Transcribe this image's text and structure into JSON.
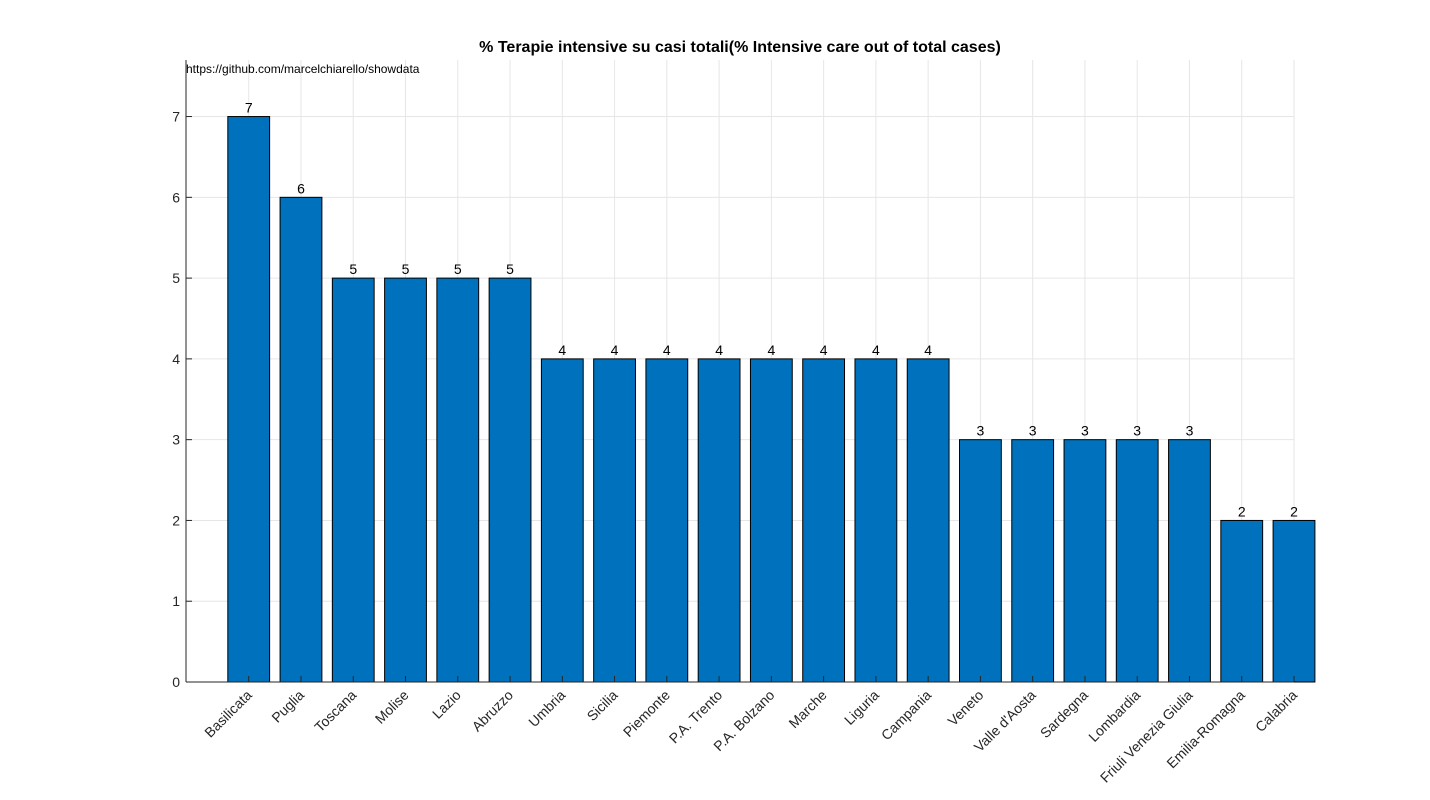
{
  "chart_data": {
    "type": "bar",
    "title": "% Terapie intensive su casi totali(% Intensive care out of total cases)",
    "annotation": "https://github.com/marcelchiarello/showdata",
    "xlabel": "",
    "ylabel": "",
    "categories": [
      "Basilicata",
      "Puglia",
      "Toscana",
      "Molise",
      "Lazio",
      "Abruzzo",
      "Umbria",
      "Sicilia",
      "Piemonte",
      "P.A. Trento",
      "P.A. Bolzano",
      "Marche",
      "Liguria",
      "Campania",
      "Veneto",
      "Valle d'Aosta",
      "Sardegna",
      "Lombardia",
      "Friuli Venezia Giulia",
      "Emilia-Romagna",
      "Calabria"
    ],
    "values": [
      7,
      6,
      5,
      5,
      5,
      5,
      4,
      4,
      4,
      4,
      4,
      4,
      4,
      4,
      3,
      3,
      3,
      3,
      3,
      2,
      2
    ],
    "ylim": [
      0,
      7.7
    ],
    "yticks": [
      0,
      1,
      2,
      3,
      4,
      5,
      6,
      7
    ],
    "grid": true,
    "bar_color": "#0072BD",
    "edge_color": "#000000"
  }
}
